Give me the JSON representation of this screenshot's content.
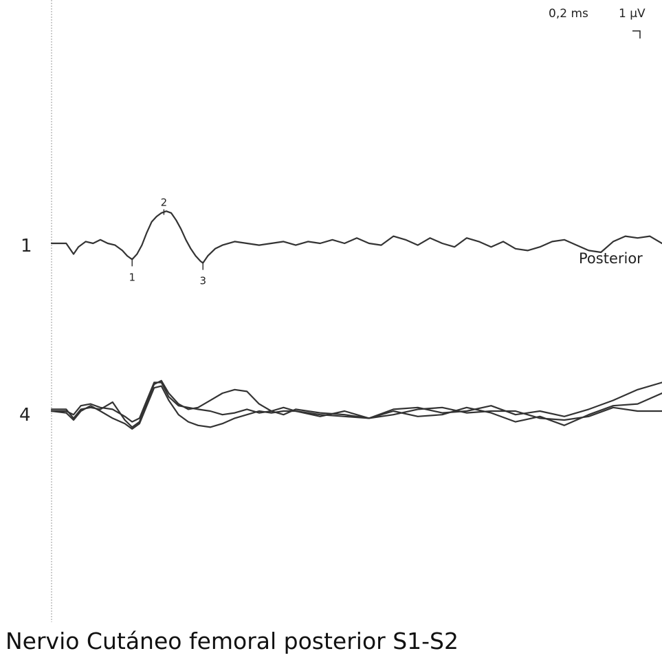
{
  "caption": "Nervio Cutáneo femoral posterior S1-S2",
  "colors": {
    "trace": "#333333",
    "baseline_marker": "#888888"
  },
  "chart_data": {
    "type": "line",
    "title": "",
    "xlabel": "",
    "ylabel": "",
    "x_unit": "ms",
    "y_unit": "µV",
    "scale": {
      "time_label": "0,2 ms",
      "amplitude_label": "1 µV",
      "ms_per_div": 0.2,
      "uv_per_div": 1
    },
    "xlim": [
      0,
      2.5
    ],
    "grid": false,
    "traces": [
      {
        "number": "1",
        "label": "Posterior",
        "markers": [
          {
            "label": "1",
            "x": 0.33
          },
          {
            "label": "2",
            "x": 0.46
          },
          {
            "label": "3",
            "x": 0.62
          }
        ],
        "series": [
          {
            "name": "",
            "x": [
              0,
              0.06,
              0.09,
              0.11,
              0.14,
              0.17,
              0.2,
              0.23,
              0.26,
              0.29,
              0.31,
              0.33,
              0.35,
              0.37,
              0.39,
              0.41,
              0.43,
              0.45,
              0.47,
              0.49,
              0.51,
              0.53,
              0.55,
              0.57,
              0.59,
              0.61,
              0.62,
              0.64,
              0.67,
              0.7,
              0.75,
              0.8,
              0.85,
              0.9,
              0.95,
              1.0,
              1.05,
              1.1,
              1.15,
              1.2,
              1.25,
              1.3,
              1.35,
              1.4,
              1.45,
              1.5,
              1.55,
              1.6,
              1.65,
              1.7,
              1.75,
              1.8,
              1.85,
              1.9,
              1.95,
              2.0,
              2.05,
              2.1,
              2.15,
              2.2,
              2.25,
              2.3,
              2.35,
              2.4,
              2.45,
              2.5
            ],
            "y": [
              0,
              0,
              -0.6,
              -0.2,
              0.1,
              0,
              0.2,
              0,
              -0.1,
              -0.4,
              -0.7,
              -0.9,
              -0.6,
              -0.1,
              0.6,
              1.2,
              1.5,
              1.7,
              1.8,
              1.7,
              1.3,
              0.8,
              0.2,
              -0.3,
              -0.7,
              -1.0,
              -1.1,
              -0.7,
              -0.3,
              -0.1,
              0.1,
              0,
              -0.1,
              0,
              0.1,
              -0.1,
              0.1,
              0,
              0.2,
              0,
              0.3,
              0,
              -0.1,
              0.4,
              0.2,
              -0.1,
              0.3,
              0,
              -0.2,
              0.3,
              0.1,
              -0.2,
              0.1,
              -0.3,
              -0.4,
              -0.2,
              0.1,
              0.2,
              -0.1,
              -0.4,
              -0.5,
              0.1,
              0.4,
              0.3,
              0.4,
              0.0
            ]
          }
        ]
      },
      {
        "number": "4",
        "label": "",
        "markers": [],
        "series": [
          {
            "name": "",
            "x": [
              0,
              0.06,
              0.09,
              0.12,
              0.16,
              0.2,
              0.25,
              0.3,
              0.33,
              0.36,
              0.39,
              0.42,
              0.45,
              0.48,
              0.52,
              0.56,
              0.6,
              0.65,
              0.7,
              0.75,
              0.8,
              0.85,
              0.9,
              0.95,
              1.0,
              1.1,
              1.2,
              1.3,
              1.4,
              1.5,
              1.6,
              1.7,
              1.8,
              1.9,
              2.0,
              2.1,
              2.2,
              2.3,
              2.4,
              2.5
            ],
            "y": [
              0.1,
              0.1,
              -0.4,
              0.1,
              0.2,
              0.1,
              0.5,
              -0.5,
              -0.9,
              -0.6,
              0.5,
              1.5,
              1.7,
              1.0,
              0.4,
              0.1,
              0.2,
              0.6,
              1.0,
              1.2,
              1.1,
              0.4,
              0.0,
              -0.2,
              0.1,
              -0.1,
              -0.2,
              -0.4,
              0.0,
              -0.3,
              -0.2,
              0.2,
              -0.1,
              -0.6,
              -0.3,
              -0.8,
              -0.2,
              0.3,
              0.4,
              1.0
            ]
          },
          {
            "name": "",
            "x": [
              0,
              0.06,
              0.09,
              0.12,
              0.16,
              0.2,
              0.25,
              0.3,
              0.33,
              0.36,
              0.39,
              0.42,
              0.45,
              0.48,
              0.52,
              0.56,
              0.6,
              0.65,
              0.7,
              0.75,
              0.8,
              0.85,
              0.9,
              0.95,
              1.0,
              1.1,
              1.2,
              1.3,
              1.4,
              1.5,
              1.6,
              1.7,
              1.8,
              1.9,
              2.0,
              2.1,
              2.2,
              2.3,
              2.4,
              2.5
            ],
            "y": [
              0,
              0,
              -0.2,
              0.3,
              0.4,
              0.2,
              0.1,
              -0.3,
              -0.6,
              -0.4,
              0.6,
              1.6,
              1.6,
              0.8,
              0.3,
              0.2,
              0.1,
              0.0,
              -0.2,
              -0.1,
              0.1,
              -0.1,
              0.0,
              0.2,
              0.0,
              -0.3,
              0.0,
              -0.4,
              0.1,
              0.2,
              -0.1,
              0.0,
              0.3,
              -0.2,
              0.0,
              -0.3,
              0.1,
              0.6,
              1.2,
              1.6
            ]
          },
          {
            "name": "",
            "x": [
              0,
              0.06,
              0.09,
              0.12,
              0.16,
              0.2,
              0.25,
              0.3,
              0.33,
              0.36,
              0.39,
              0.42,
              0.45,
              0.48,
              0.52,
              0.56,
              0.6,
              0.65,
              0.7,
              0.75,
              0.8,
              0.85,
              0.9,
              0.95,
              1.0,
              1.1,
              1.2,
              1.3,
              1.4,
              1.5,
              1.6,
              1.7,
              1.8,
              1.9,
              2.0,
              2.1,
              2.2,
              2.3,
              2.4,
              2.5
            ],
            "y": [
              0,
              -0.1,
              -0.5,
              0.0,
              0.3,
              0.0,
              -0.4,
              -0.7,
              -1.0,
              -0.7,
              0.3,
              1.3,
              1.4,
              0.6,
              -0.2,
              -0.6,
              -0.8,
              -0.9,
              -0.7,
              -0.4,
              -0.2,
              0.0,
              -0.1,
              0.0,
              0.0,
              -0.2,
              -0.3,
              -0.4,
              -0.2,
              0.1,
              0.2,
              -0.1,
              0.0,
              0.0,
              -0.4,
              -0.5,
              -0.3,
              0.2,
              0.0,
              0.0
            ]
          }
        ]
      }
    ]
  }
}
